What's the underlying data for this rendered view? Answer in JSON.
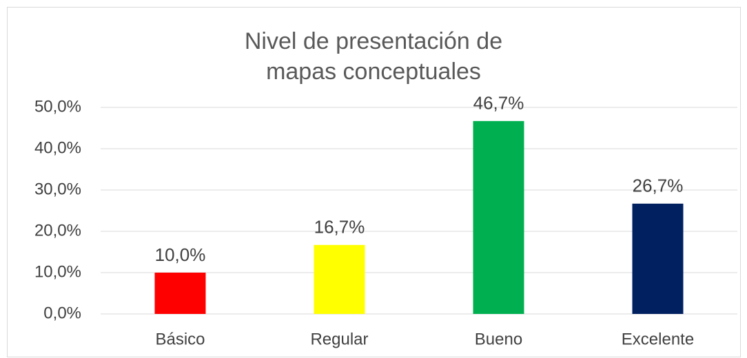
{
  "chart_data": {
    "type": "bar",
    "title": "Nivel de presentación de mapas conceptuales",
    "categories": [
      "Básico",
      "Regular",
      "Bueno",
      "Excelente"
    ],
    "values": [
      10.0,
      16.7,
      46.7,
      26.7
    ],
    "value_labels": [
      "10,0%",
      "16,7%",
      "46,7%",
      "26,7%"
    ],
    "colors": [
      "#ff0000",
      "#ffff00",
      "#00b050",
      "#002060"
    ],
    "ylim": [
      0,
      50
    ],
    "yticks": [
      {
        "value": 0,
        "label": "0,0%"
      },
      {
        "value": 10,
        "label": "10,0%"
      },
      {
        "value": 20,
        "label": "20,0%"
      },
      {
        "value": 30,
        "label": "30,0%"
      },
      {
        "value": 40,
        "label": "40,0%"
      },
      {
        "value": 50,
        "label": "50,0%"
      }
    ],
    "grid": true
  }
}
